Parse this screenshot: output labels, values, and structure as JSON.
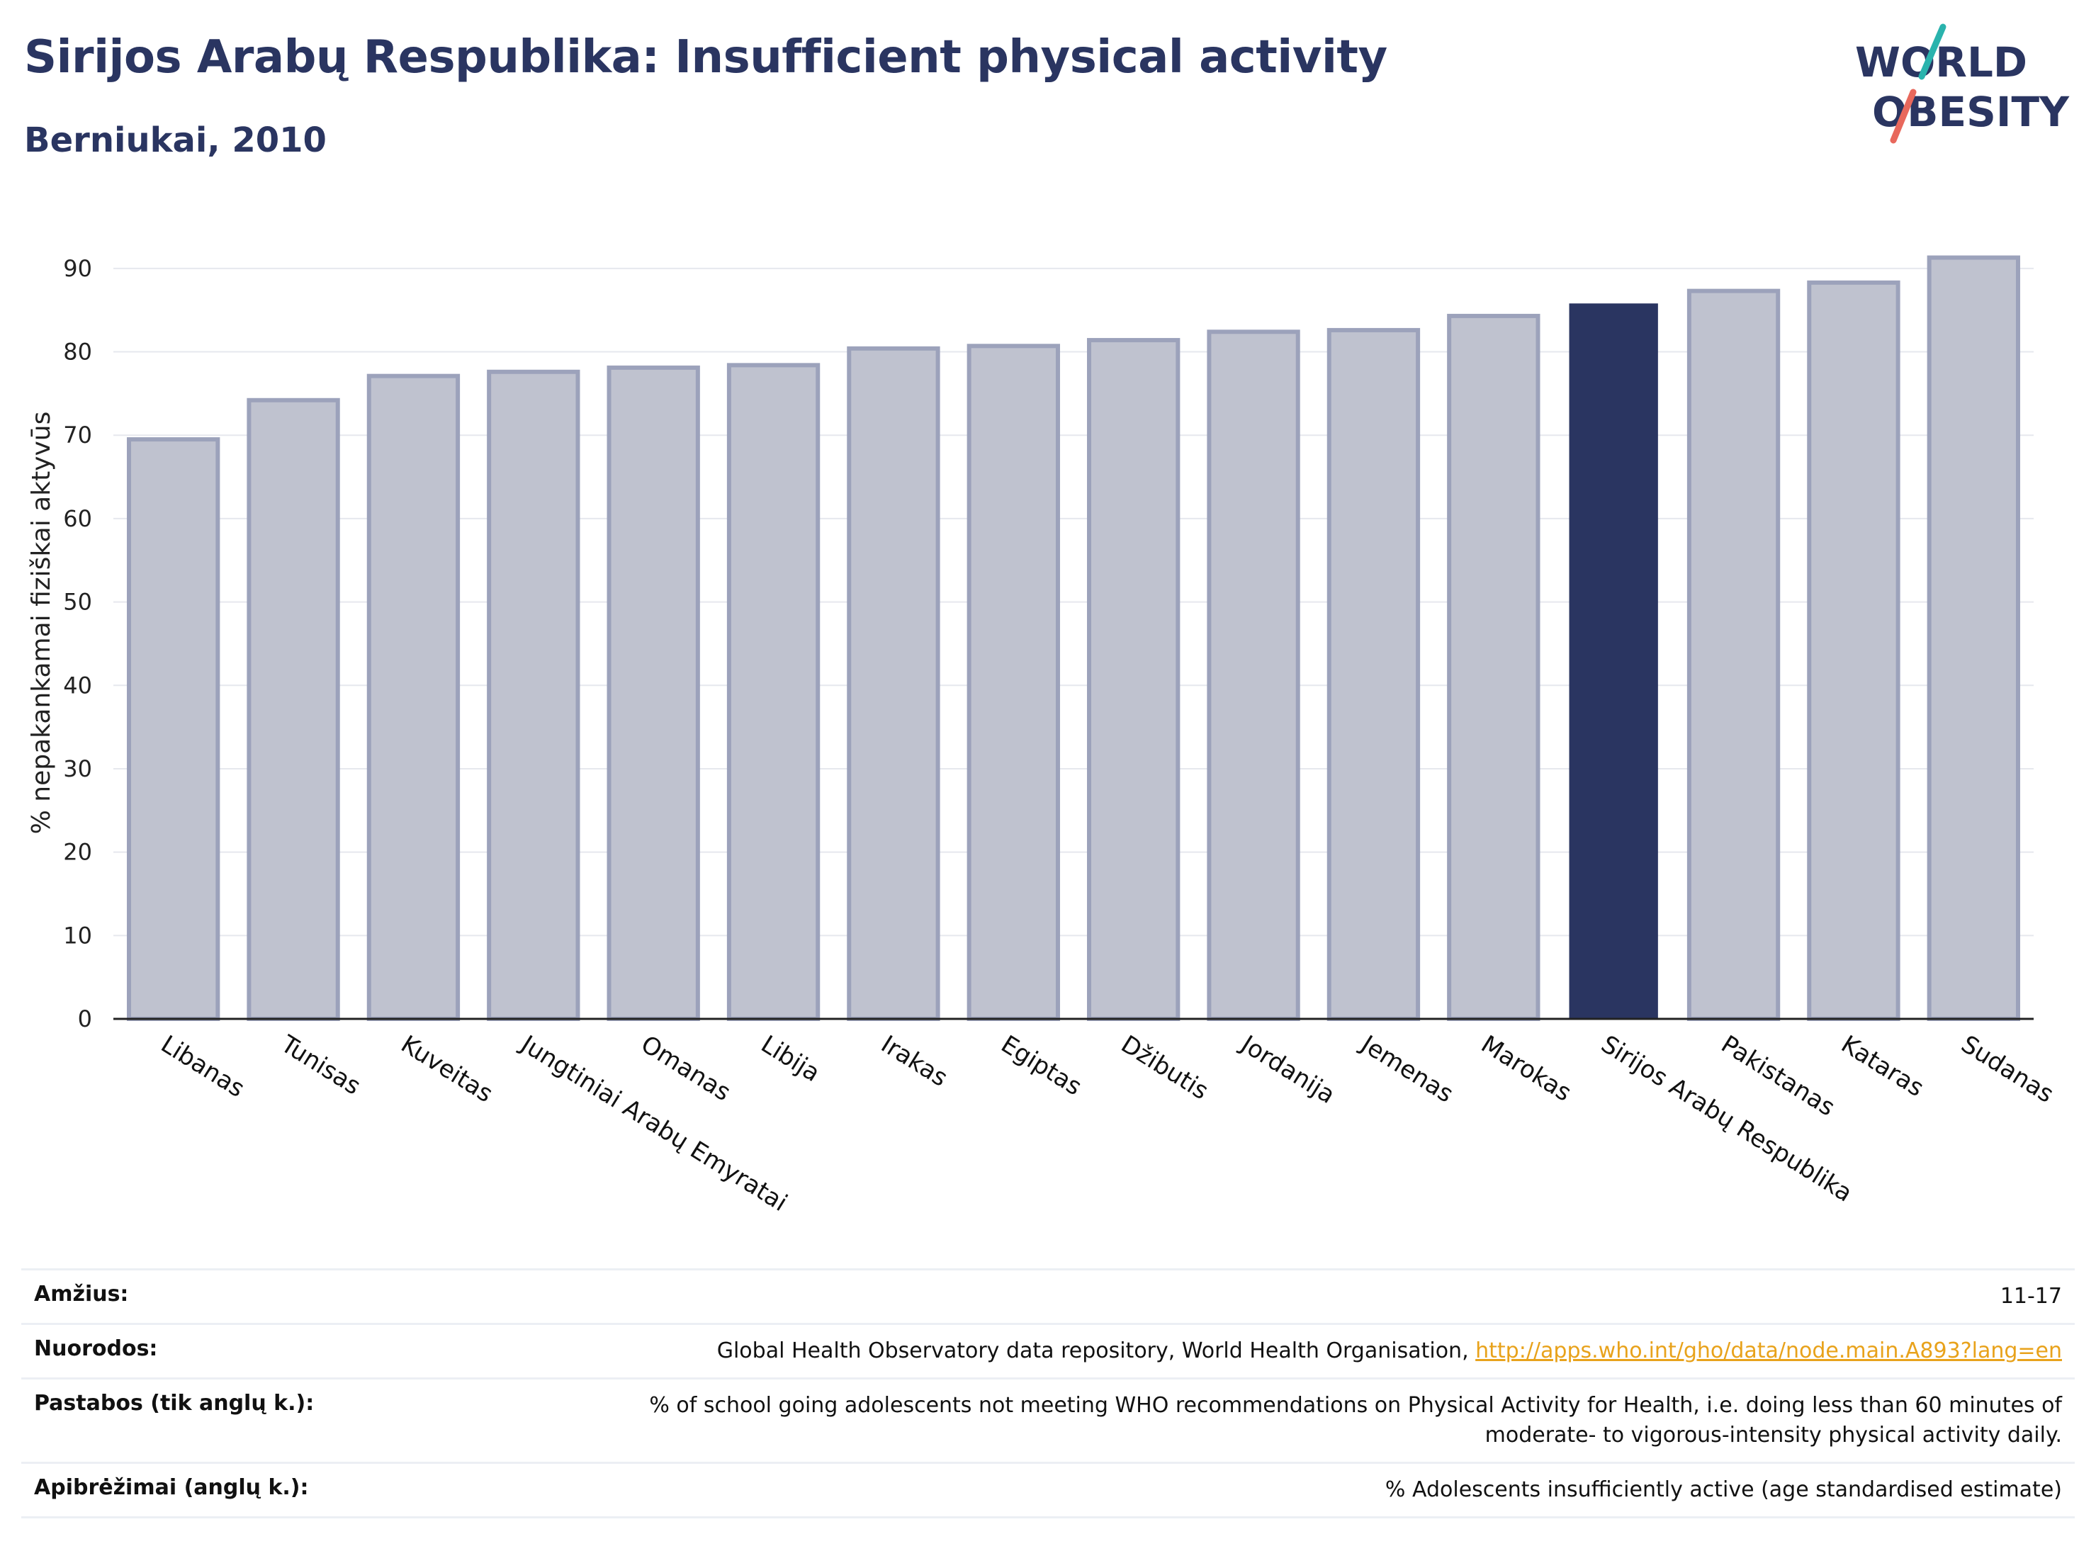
{
  "header": {
    "title": "Sirijos Arabų Respublika: Insufficient physical activity",
    "subtitle": "Berniukai, 2010",
    "logo_text": "WORLD OBESITY"
  },
  "colors": {
    "bar_default": "#bfc2cf",
    "bar_border": "#9ca2bb",
    "bar_highlight": "#2a3561",
    "title": "#2a3561",
    "link": "#e8a21b",
    "logo_slash_teal": "#2ab3ad",
    "logo_slash_red": "#e8685c"
  },
  "chart_data": {
    "type": "bar",
    "ylabel": "% nepakankamai fiziškai aktyvūs",
    "ylim": [
      0,
      95
    ],
    "yticks": [
      0,
      10,
      20,
      30,
      40,
      50,
      60,
      70,
      80,
      90
    ],
    "grid": true,
    "highlight": "Sirijos Arabų Respublika",
    "categories": [
      "Libanas",
      "Tunisas",
      "Kuveitas",
      "Jungtiniai Arabų Emyratai",
      "Omanas",
      "Libija",
      "Irakas",
      "Egiptas",
      "Džibutis",
      "Jordanija",
      "Jemenas",
      "Marokas",
      "Sirijos Arabų Respublika",
      "Pakistanas",
      "Kataras",
      "Sudanas"
    ],
    "values": [
      69.5,
      74.2,
      77.1,
      77.6,
      78.1,
      78.4,
      80.4,
      80.7,
      81.4,
      82.4,
      82.6,
      84.3,
      85.8,
      87.3,
      88.3,
      91.3
    ]
  },
  "footer": {
    "rows": [
      {
        "label": "Amžius:",
        "value": "11-17"
      },
      {
        "label": "Nuorodos:",
        "value": "Global Health Observatory data repository, World Health Organisation, ",
        "link": "http://apps.who.int/gho/data/node.main.A893?lang=en"
      },
      {
        "label": "Pastabos (tik anglų k.):",
        "value": "% of school going adolescents not meeting WHO recommendations on Physical Activity for Health, i.e. doing less than 60 minutes of moderate- to vigorous-intensity physical activity daily."
      },
      {
        "label": "Apibrėžimai (anglų k.):",
        "value": "% Adolescents insufficiently active (age standardised estimate)"
      }
    ]
  }
}
